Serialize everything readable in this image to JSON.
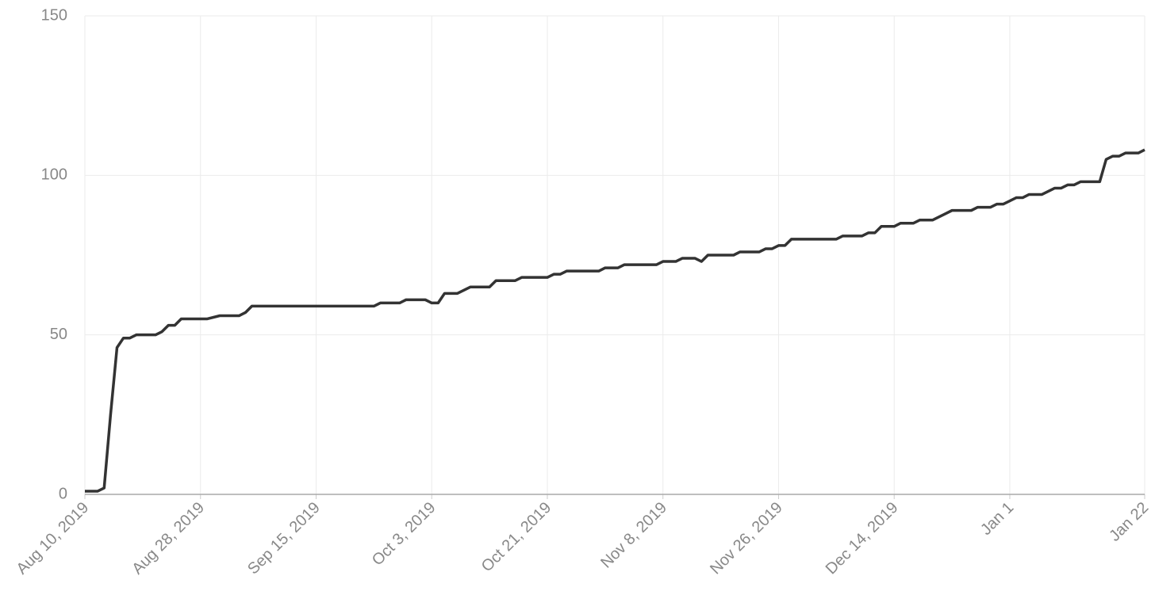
{
  "chart_data": {
    "type": "line",
    "x": [
      0,
      2,
      3,
      4,
      5,
      6,
      7,
      8,
      11,
      12,
      13,
      14,
      15,
      19,
      21,
      24,
      25,
      26,
      45,
      46,
      49,
      50,
      53,
      54,
      55,
      56,
      58,
      60,
      63,
      64,
      67,
      68,
      72,
      73,
      74,
      75,
      80,
      81,
      83,
      84,
      89,
      90,
      92,
      93,
      95,
      96,
      97,
      101,
      102,
      105,
      106,
      107,
      108,
      109,
      110,
      117,
      118,
      121,
      122,
      123,
      124,
      126,
      127,
      129,
      130,
      132,
      134,
      135,
      138,
      139,
      141,
      142,
      143,
      145,
      146,
      147,
      149,
      151,
      152,
      153,
      154,
      155,
      158,
      159,
      160,
      161,
      162,
      164,
      165
    ],
    "series": [
      {
        "color": "#333333",
        "values": [
          1,
          1,
          2,
          25,
          46,
          49,
          49,
          50,
          50,
          51,
          53,
          53,
          55,
          55,
          56,
          56,
          57,
          59,
          59,
          60,
          60,
          61,
          61,
          60,
          60,
          63,
          63,
          65,
          65,
          67,
          67,
          68,
          68,
          69,
          69,
          70,
          70,
          71,
          71,
          72,
          72,
          73,
          73,
          74,
          74,
          73,
          75,
          75,
          76,
          76,
          77,
          77,
          78,
          78,
          80,
          80,
          81,
          81,
          82,
          82,
          84,
          84,
          85,
          85,
          86,
          86,
          88,
          89,
          89,
          90,
          90,
          91,
          91,
          93,
          93,
          94,
          94,
          96,
          96,
          97,
          97,
          98,
          98,
          105,
          106,
          106,
          107,
          107,
          108
        ]
      }
    ],
    "xlim": [
      0,
      165
    ],
    "xticks": [
      {
        "value": 0,
        "label": "Aug 10, 2019"
      },
      {
        "value": 18,
        "label": "Aug 28, 2019"
      },
      {
        "value": 36,
        "label": "Sep 15, 2019"
      },
      {
        "value": 54,
        "label": "Oct 3, 2019"
      },
      {
        "value": 72,
        "label": "Oct 21, 2019"
      },
      {
        "value": 90,
        "label": "Nov 8, 2019"
      },
      {
        "value": 108,
        "label": "Nov 26, 2019"
      },
      {
        "value": 126,
        "label": "Dec 14, 2019"
      },
      {
        "value": 144,
        "label": "Jan 1"
      },
      {
        "value": 165,
        "label": "Jan 22"
      }
    ],
    "ylim": [
      0,
      150
    ],
    "yticks": [
      0,
      50,
      100,
      150
    ],
    "grid": true
  }
}
